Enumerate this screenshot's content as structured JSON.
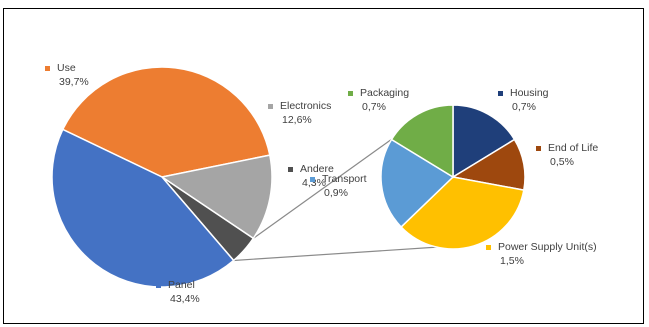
{
  "chart_data": [
    {
      "type": "pie",
      "title": "",
      "slices": [
        {
          "name": "Use",
          "value": 39.7,
          "label": "39,7%",
          "color": "#ED7D31"
        },
        {
          "name": "Electronics",
          "value": 12.6,
          "label": "12,6%",
          "color": "#A5A5A5"
        },
        {
          "name": "Andere",
          "value": 4.3,
          "label": "4,3%",
          "color": "#505050"
        },
        {
          "name": "Panel",
          "value": 43.4,
          "label": "43,4%",
          "color": "#4472C4"
        }
      ],
      "exploded_slice": "Andere"
    },
    {
      "type": "pie",
      "title": "",
      "breakdown_of": "Andere",
      "slices": [
        {
          "name": "Housing",
          "value": 0.7,
          "label": "0,7%",
          "color": "#1F3F7A"
        },
        {
          "name": "End of Life",
          "value": 0.5,
          "label": "0,5%",
          "color": "#9E480E"
        },
        {
          "name": "Power Supply Unit(s)",
          "value": 1.5,
          "label": "1,5%",
          "color": "#FFC000"
        },
        {
          "name": "Transport",
          "value": 0.9,
          "label": "0,9%",
          "color": "#5B9BD5"
        },
        {
          "name": "Packaging",
          "value": 0.7,
          "label": "0,7%",
          "color": "#70AD47"
        }
      ]
    }
  ]
}
